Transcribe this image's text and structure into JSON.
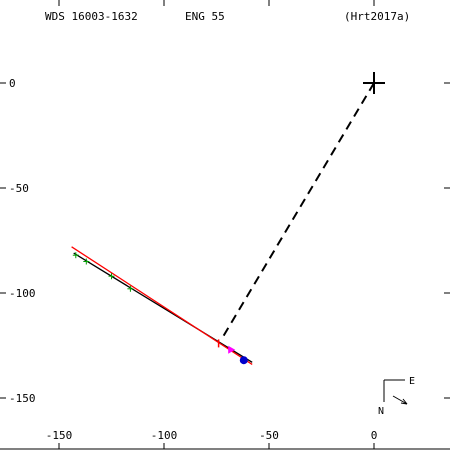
{
  "header": {
    "left": "WDS 16003-1632",
    "center": "ENG  55",
    "right": "(Hrt2017a)"
  },
  "compass": {
    "east": "E",
    "north": "N"
  },
  "chart_data": {
    "type": "scatter",
    "title": "",
    "xlabel": "",
    "ylabel": "",
    "xlim": [
      -170,
      33
    ],
    "ylim": [
      -172,
      35
    ],
    "x_axis_reversed": false,
    "y_axis_inverted": true,
    "x_ticks": [
      -150,
      -100,
      -50,
      0
    ],
    "y_ticks": [
      0,
      -50,
      -100,
      -150
    ],
    "x_tick_labels": [
      "-150",
      "-100",
      "-50",
      "0"
    ],
    "y_tick_labels": [
      "0",
      "-50",
      "-100",
      "-150"
    ],
    "grid": false,
    "legend": "none",
    "primary": {
      "x": 0,
      "y": 0
    },
    "series": [
      {
        "type": "segment",
        "color": "#000000",
        "style": "solid",
        "points": [
          [
            -143,
            -81
          ],
          [
            -58,
            -133
          ]
        ]
      },
      {
        "type": "segment",
        "color": "#ff0000",
        "style": "solid",
        "points": [
          [
            -144,
            -78
          ],
          [
            -58,
            -134
          ]
        ]
      },
      {
        "type": "segment",
        "color": "#000000",
        "style": "dashed",
        "points": [
          [
            0,
            0
          ],
          [
            -72,
            -121
          ]
        ]
      },
      {
        "type": "markers",
        "marker": "plus",
        "color": "#00a000",
        "points": [
          [
            -142,
            -82
          ],
          [
            -137,
            -85
          ],
          [
            -125,
            -92
          ],
          [
            -116,
            -98
          ]
        ]
      },
      {
        "type": "markers",
        "marker": "tick",
        "color": "#ff0000",
        "points": [
          [
            -74,
            -124
          ]
        ]
      },
      {
        "type": "markers",
        "marker": "triangle",
        "color": "#ff00ff",
        "points": [
          [
            -68,
            -127
          ]
        ]
      },
      {
        "type": "markers",
        "marker": "circle",
        "color": "#0000cc",
        "points": [
          [
            -62,
            -132
          ]
        ]
      }
    ]
  }
}
